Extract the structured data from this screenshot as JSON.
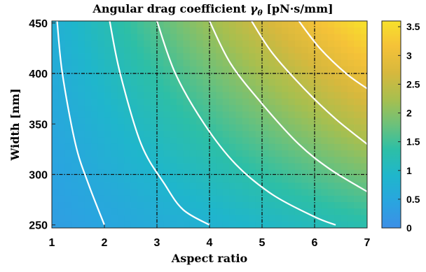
{
  "chart_data": {
    "type": "heatmap",
    "title": "Angular drag coefficient γθ [pN·s/mm]",
    "title_main": "Angular drag coefficient ",
    "title_symbol": "γ",
    "title_subscript": "θ",
    "title_unit": " [pN·s/mm]",
    "xlabel": "Aspect ratio",
    "ylabel": "Width [nm]",
    "xlim": [
      1,
      7
    ],
    "ylim": [
      247,
      452
    ],
    "x_ticks": [
      1,
      2,
      3,
      4,
      5,
      6,
      7
    ],
    "y_ticks": [
      250,
      300,
      350,
      400,
      450
    ],
    "colorbar": {
      "range": [
        0,
        3.6
      ],
      "ticks": [
        0,
        0.5,
        1,
        1.5,
        2,
        2.5,
        3,
        3.5
      ],
      "colormap": "parula"
    },
    "field_samples": {
      "x": [
        1,
        7
      ],
      "y": [
        250,
        450
      ],
      "values": [
        [
          0.3,
          1.3
        ],
        [
          0.7,
          3.6
        ]
      ]
    },
    "contour_lines": [
      {
        "label": "c1",
        "points": [
          [
            1.1,
            452
          ],
          [
            1.2,
            400
          ],
          [
            1.45,
            330
          ],
          [
            1.7,
            290
          ],
          [
            2.0,
            250
          ]
        ]
      },
      {
        "label": "c2",
        "points": [
          [
            2.1,
            452
          ],
          [
            2.3,
            400
          ],
          [
            2.7,
            330
          ],
          [
            3.15,
            290
          ],
          [
            3.5,
            265
          ],
          [
            4.0,
            250
          ]
        ]
      },
      {
        "label": "c3",
        "points": [
          [
            3.0,
            452
          ],
          [
            3.35,
            400
          ],
          [
            3.9,
            350
          ],
          [
            4.5,
            310
          ],
          [
            5.2,
            280
          ],
          [
            6.0,
            258
          ],
          [
            6.4,
            250
          ]
        ]
      },
      {
        "label": "c4",
        "points": [
          [
            4.0,
            452
          ],
          [
            4.4,
            410
          ],
          [
            5.0,
            370
          ],
          [
            5.7,
            330
          ],
          [
            6.3,
            305
          ],
          [
            7.0,
            283
          ]
        ]
      },
      {
        "label": "c5",
        "points": [
          [
            4.8,
            452
          ],
          [
            5.2,
            420
          ],
          [
            5.8,
            385
          ],
          [
            6.4,
            355
          ],
          [
            7.0,
            330
          ]
        ]
      },
      {
        "label": "c6",
        "points": [
          [
            5.7,
            452
          ],
          [
            6.1,
            425
          ],
          [
            6.6,
            400
          ],
          [
            7.0,
            385
          ]
        ]
      }
    ],
    "reference_lines": {
      "x": [
        3,
        4,
        5,
        6
      ],
      "y": [
        300,
        400
      ]
    },
    "grid": false,
    "legend": "none"
  }
}
